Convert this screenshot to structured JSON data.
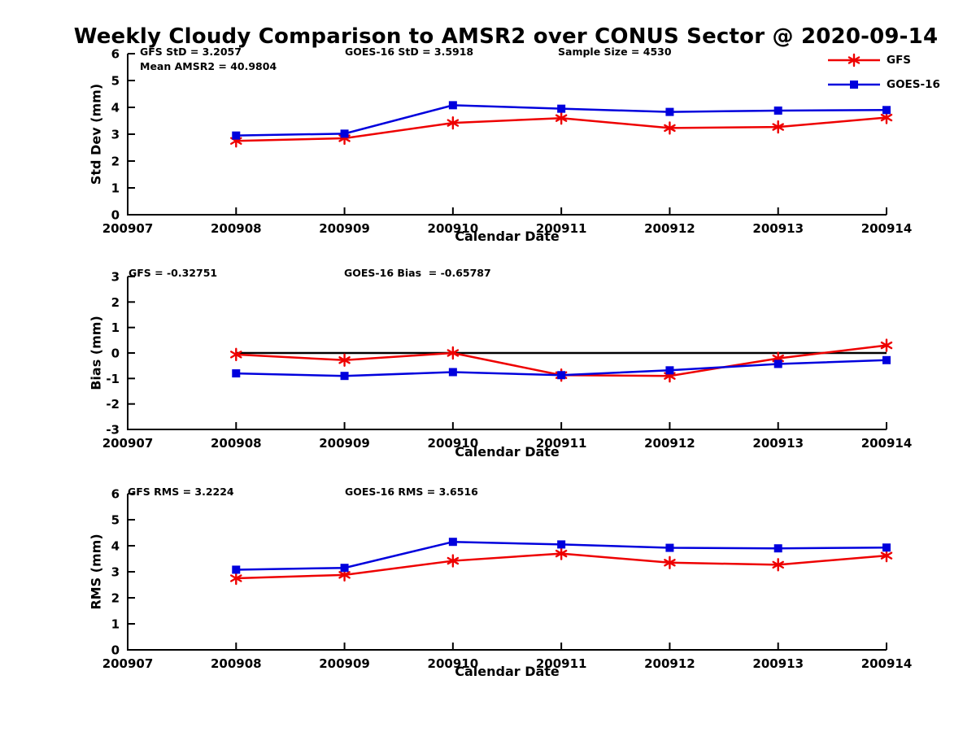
{
  "title": "Weekly Cloudy Comparison to AMSR2 over CONUS Sector @ 2020-09-14",
  "legend": {
    "items": [
      {
        "label": "GFS",
        "color": "#ee0000",
        "marker": "asterisk"
      },
      {
        "label": "GOES-16",
        "color": "#0000dd",
        "marker": "square"
      }
    ]
  },
  "chart_data": [
    {
      "type": "line",
      "ylabel": "Std Dev (mm)",
      "xlabel": "Calendar Date",
      "ylim": [
        0,
        6
      ],
      "y_ticks": [
        0,
        1,
        2,
        3,
        4,
        5,
        6
      ],
      "x_tick_labels": [
        "200907",
        "200908",
        "200909",
        "200910",
        "200911",
        "200912",
        "200913",
        "200914"
      ],
      "x": [
        "200908",
        "200909",
        "200910",
        "200911",
        "200912",
        "200913",
        "200914"
      ],
      "zero_line": false,
      "series": [
        {
          "name": "GFS",
          "color": "#ee0000",
          "marker": "asterisk",
          "values": [
            2.75,
            2.85,
            3.42,
            3.6,
            3.23,
            3.27,
            3.62
          ]
        },
        {
          "name": "GOES-16",
          "color": "#0000dd",
          "marker": "square",
          "values": [
            2.95,
            3.02,
            4.08,
            3.95,
            3.83,
            3.88,
            3.9
          ]
        }
      ],
      "annotations": [
        "GFS StD = 3.2057",
        "GOES-16 StD = 3.5918",
        "Sample Size = 4530",
        "Mean AMSR2 = 40.9804"
      ]
    },
    {
      "type": "line",
      "ylabel": "Bias (mm)",
      "xlabel": "Calendar Date",
      "ylim": [
        -3,
        3
      ],
      "y_ticks": [
        -3,
        -2,
        -1,
        0,
        1,
        2,
        3
      ],
      "x_tick_labels": [
        "200907",
        "200908",
        "200909",
        "200910",
        "200911",
        "200912",
        "200913",
        "200914"
      ],
      "x": [
        "200908",
        "200909",
        "200910",
        "200911",
        "200912",
        "200913",
        "200914"
      ],
      "zero_line": true,
      "series": [
        {
          "name": "GFS",
          "color": "#ee0000",
          "marker": "asterisk",
          "values": [
            -0.06,
            -0.28,
            0.0,
            -0.87,
            -0.9,
            -0.21,
            0.3
          ]
        },
        {
          "name": "GOES-16",
          "color": "#0000dd",
          "marker": "square",
          "values": [
            -0.8,
            -0.9,
            -0.75,
            -0.87,
            -0.68,
            -0.43,
            -0.28
          ]
        }
      ],
      "annotations": [
        "GFS = -0.32751",
        "GOES-16 Bias  = -0.65787"
      ]
    },
    {
      "type": "line",
      "ylabel": "RMS (mm)",
      "xlabel": "Calendar Date",
      "ylim": [
        0,
        6
      ],
      "y_ticks": [
        0,
        1,
        2,
        3,
        4,
        5,
        6
      ],
      "x_tick_labels": [
        "200907",
        "200908",
        "200909",
        "200910",
        "200911",
        "200912",
        "200913",
        "200914"
      ],
      "x": [
        "200908",
        "200909",
        "200910",
        "200911",
        "200912",
        "200913",
        "200914"
      ],
      "zero_line": false,
      "series": [
        {
          "name": "GFS",
          "color": "#ee0000",
          "marker": "asterisk",
          "values": [
            2.75,
            2.88,
            3.42,
            3.7,
            3.35,
            3.27,
            3.62
          ]
        },
        {
          "name": "GOES-16",
          "color": "#0000dd",
          "marker": "square",
          "values": [
            3.08,
            3.15,
            4.15,
            4.05,
            3.92,
            3.9,
            3.93
          ]
        }
      ],
      "annotations": [
        "GFS RMS = 3.2224",
        "GOES-16 RMS = 3.6516"
      ]
    }
  ]
}
